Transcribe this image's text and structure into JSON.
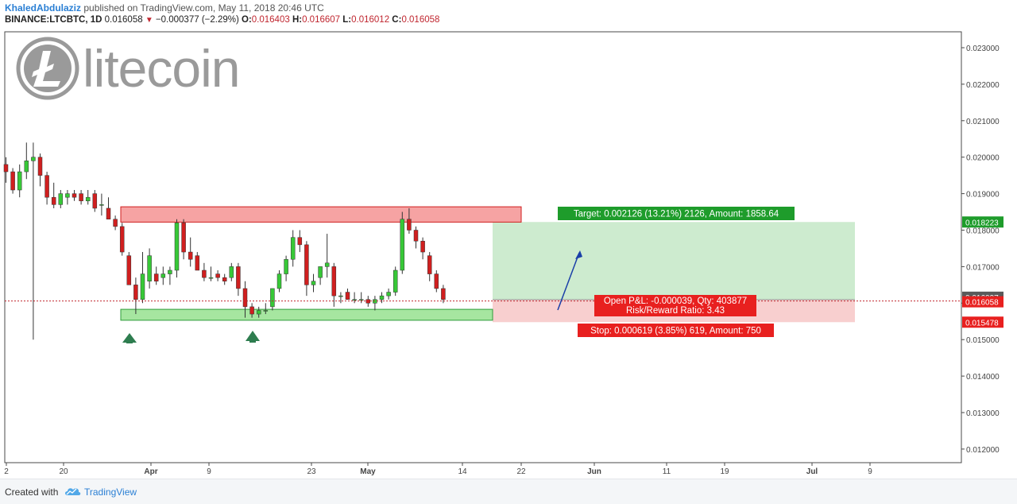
{
  "header": {
    "author": "KhaledAbdulaziz",
    "published": "published on TradingView.com, May 11, 2018 20:46 UTC",
    "symbol": "BINANCE:LTCBTC, 1D",
    "last": "0.016058",
    "change": "−0.000377 (−2.29%)",
    "o_label": "O:",
    "o_val": "0.016403",
    "h_label": "H:",
    "h_val": "0.016607",
    "l_label": "L:",
    "l_val": "0.016012",
    "c_label": "C:",
    "c_val": "0.016058"
  },
  "logo": {
    "text": "litecoin",
    "icon": "litecoin-icon"
  },
  "footer": {
    "created": "Created with",
    "brand": "TradingView",
    "icon": "tradingview-cloud-icon"
  },
  "colors": {
    "up": "#37c837",
    "down": "#d01f1f",
    "resistance": "#f6a3a3",
    "support": "#a6e6a0",
    "target_zone": "#cdebcf",
    "stop_zone": "#f8cfcf",
    "arrow": "#2e7d4f",
    "trend_arrow": "#1a3fa8"
  },
  "chart_data": {
    "type": "candlestick",
    "symbol": "BINANCE:LTCBTC",
    "interval": "1D",
    "y_axis": {
      "side": "right",
      "ticks": [
        "0.023000",
        "0.022000",
        "0.021000",
        "0.020000",
        "0.019000",
        "0.018000",
        "0.017000",
        "0.016000",
        "0.015000",
        "0.014000",
        "0.013000",
        "0.012000"
      ],
      "range": [
        0.0115,
        0.0239
      ]
    },
    "x_axis": {
      "ticks": [
        "2",
        "20",
        "Apr",
        "9",
        "23",
        "May",
        "14",
        "22",
        "Jun",
        "11",
        "19",
        "Jul",
        "9"
      ]
    },
    "price_labels": [
      {
        "value": "0.018223",
        "style": "target"
      },
      {
        "value": "0.016097",
        "style": "entry"
      },
      {
        "value": "0.016058",
        "style": "last"
      },
      {
        "value": "0.015478",
        "style": "stop"
      }
    ],
    "candles": [
      [
        0.0198,
        0.02,
        0.0193,
        0.0196
      ],
      [
        0.0196,
        0.0197,
        0.019,
        0.0191
      ],
      [
        0.0191,
        0.0198,
        0.0189,
        0.0196
      ],
      [
        0.0196,
        0.0204,
        0.0194,
        0.0199
      ],
      [
        0.0199,
        0.0204,
        0.015,
        0.02
      ],
      [
        0.02,
        0.0201,
        0.0192,
        0.0195
      ],
      [
        0.0195,
        0.0196,
        0.0187,
        0.0189
      ],
      [
        0.0189,
        0.0193,
        0.0186,
        0.0187
      ],
      [
        0.0187,
        0.0191,
        0.0186,
        0.019
      ],
      [
        0.0189,
        0.0191,
        0.0187,
        0.019
      ],
      [
        0.019,
        0.0191,
        0.0188,
        0.0189
      ],
      [
        0.019,
        0.0191,
        0.0187,
        0.0188
      ],
      [
        0.0188,
        0.0191,
        0.0187,
        0.0189
      ],
      [
        0.019,
        0.0191,
        0.0185,
        0.0186
      ],
      [
        0.0187,
        0.019,
        0.0184,
        0.0187
      ],
      [
        0.0186,
        0.0189,
        0.0183,
        0.0183
      ],
      [
        0.0183,
        0.0184,
        0.018,
        0.0181
      ],
      [
        0.0181,
        0.0182,
        0.0173,
        0.0174
      ],
      [
        0.0173,
        0.0174,
        0.0165,
        0.0165
      ],
      [
        0.0165,
        0.0167,
        0.0157,
        0.0161
      ],
      [
        0.0161,
        0.0174,
        0.016,
        0.0168
      ],
      [
        0.0166,
        0.0175,
        0.0164,
        0.0173
      ],
      [
        0.0168,
        0.017,
        0.0165,
        0.0166
      ],
      [
        0.0167,
        0.017,
        0.0165,
        0.0168
      ],
      [
        0.0168,
        0.017,
        0.0165,
        0.0169
      ],
      [
        0.0169,
        0.0183,
        0.0167,
        0.0182
      ],
      [
        0.0182,
        0.0183,
        0.0172,
        0.0174
      ],
      [
        0.0174,
        0.0178,
        0.017,
        0.0172
      ],
      [
        0.0173,
        0.0174,
        0.0169,
        0.0169
      ],
      [
        0.0169,
        0.0171,
        0.0166,
        0.0167
      ],
      [
        0.0167,
        0.017,
        0.0166,
        0.0167
      ],
      [
        0.0168,
        0.0169,
        0.0166,
        0.0167
      ],
      [
        0.0167,
        0.0168,
        0.0165,
        0.0166
      ],
      [
        0.0167,
        0.0171,
        0.0166,
        0.017
      ],
      [
        0.017,
        0.0171,
        0.0162,
        0.0164
      ],
      [
        0.0164,
        0.0166,
        0.0156,
        0.0159
      ],
      [
        0.0159,
        0.016,
        0.0156,
        0.0157
      ],
      [
        0.0157,
        0.0159,
        0.0156,
        0.0158
      ],
      [
        0.0158,
        0.016,
        0.0157,
        0.0158
      ],
      [
        0.0159,
        0.0164,
        0.0158,
        0.0164
      ],
      [
        0.0164,
        0.0169,
        0.0163,
        0.0168
      ],
      [
        0.0168,
        0.0173,
        0.0166,
        0.0172
      ],
      [
        0.0172,
        0.018,
        0.017,
        0.0178
      ],
      [
        0.0178,
        0.018,
        0.0174,
        0.0176
      ],
      [
        0.0176,
        0.0177,
        0.0162,
        0.0165
      ],
      [
        0.0165,
        0.0168,
        0.0163,
        0.0166
      ],
      [
        0.0167,
        0.017,
        0.0165,
        0.017
      ],
      [
        0.017,
        0.0179,
        0.0167,
        0.0171
      ],
      [
        0.017,
        0.0171,
        0.0159,
        0.0162
      ],
      [
        0.0162,
        0.0163,
        0.016,
        0.0162
      ],
      [
        0.0163,
        0.0164,
        0.0161,
        0.0161
      ],
      [
        0.0161,
        0.0163,
        0.016,
        0.0161
      ],
      [
        0.0161,
        0.0163,
        0.016,
        0.0161
      ],
      [
        0.0161,
        0.0162,
        0.0159,
        0.016
      ],
      [
        0.016,
        0.0162,
        0.0158,
        0.0161
      ],
      [
        0.0161,
        0.0163,
        0.016,
        0.0162
      ],
      [
        0.0162,
        0.0164,
        0.0161,
        0.0163
      ],
      [
        0.0163,
        0.017,
        0.0162,
        0.0169
      ],
      [
        0.0169,
        0.0185,
        0.0168,
        0.0183
      ],
      [
        0.0183,
        0.0186,
        0.0179,
        0.018
      ],
      [
        0.018,
        0.0181,
        0.0175,
        0.0177
      ],
      [
        0.0177,
        0.0178,
        0.0172,
        0.0174
      ],
      [
        0.0173,
        0.0174,
        0.0166,
        0.0168
      ],
      [
        0.0168,
        0.0169,
        0.0163,
        0.0164
      ],
      [
        0.0164,
        0.0165,
        0.016,
        0.0161
      ]
    ],
    "zones": {
      "resistance": [
        0.01822,
        0.01864
      ],
      "support": [
        0.01553,
        0.01583
      ]
    },
    "position": {
      "target_price": 0.018223,
      "entry_price": 0.016097,
      "stop_price": 0.015478,
      "target_label": "Target: 0.002126 (13.21%) 2126, Amount: 1858.64",
      "pl_label": "Open P&L: -0.000039, Qty: 403877",
      "rr_label": "Risk/Reward Ratio: 3.43",
      "stop_label": "Stop: 0.000619 (3.85%) 619, Amount: 750"
    },
    "last_price": 0.016058
  }
}
